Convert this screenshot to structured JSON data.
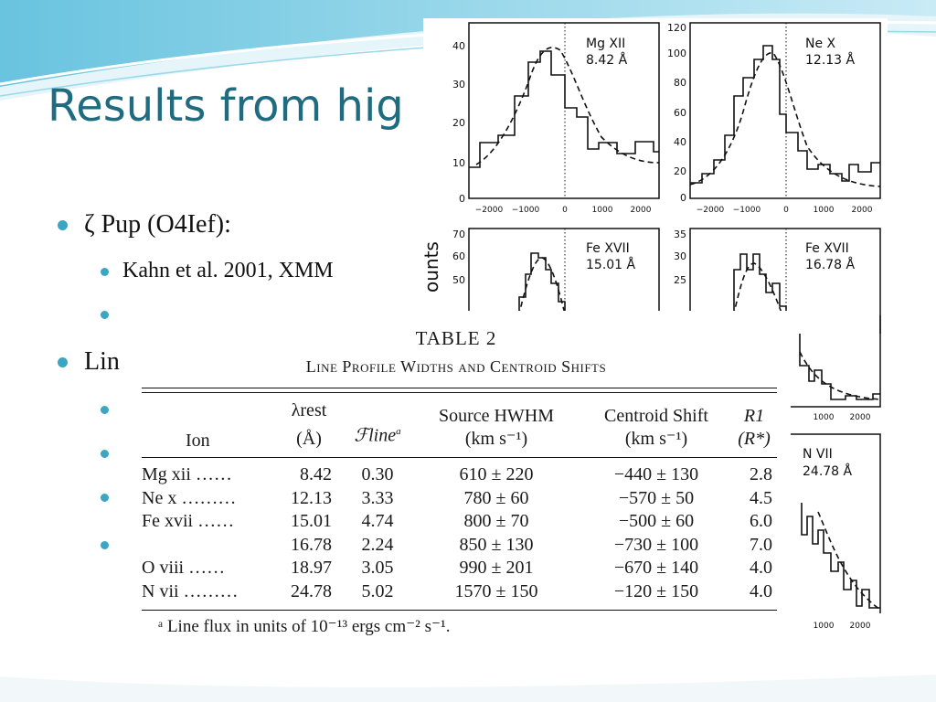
{
  "slide": {
    "title": "Results from hig",
    "bullets": [
      {
        "level": 1,
        "text": "ζ Pup (O4Ief):"
      },
      {
        "level": 2,
        "text": "Kahn et al. 2001, XMM"
      },
      {
        "level": 1,
        "text": "Lin"
      }
    ]
  },
  "colors": {
    "title": "#1f6b80",
    "bullet": "#3aa6c4",
    "accent_wave": "#5fc3e0"
  },
  "plots": {
    "y_axis_label": "ounts",
    "panels": [
      {
        "name": "Mg XII",
        "wavelength": "8.42 Å",
        "yticks": [
          "40",
          "30",
          "20",
          "10",
          "0"
        ],
        "xticks": [
          "−2000",
          "−1000",
          "0",
          "1000",
          "2000"
        ]
      },
      {
        "name": "Ne X",
        "wavelength": "12.13 Å",
        "yticks": [
          "120",
          "100",
          "80",
          "60",
          "40",
          "20",
          "0"
        ],
        "xticks": [
          "−2000",
          "−1000",
          "0",
          "1000",
          "2000"
        ]
      },
      {
        "name": "Fe XVII",
        "wavelength": "15.01 Å",
        "yticks": [
          "70",
          "60",
          "50"
        ]
      },
      {
        "name": "Fe XVII",
        "wavelength": "16.78 Å",
        "yticks": [
          "35",
          "30",
          "25"
        ]
      },
      {
        "name": "N VII",
        "wavelength": "24.78 Å",
        "xticks": [
          "1000",
          "2000"
        ]
      }
    ],
    "fe_xvii_16_xticks": [
      "1000",
      "2000"
    ]
  },
  "table": {
    "title": "TABLE 2",
    "subtitle": "Line Profile Widths and Centroid Shifts",
    "headers": {
      "ion": "Ion",
      "rest": "λrest",
      "rest_unit": "(Å)",
      "flux": "ℱline",
      "flux_note": "a",
      "hwhm": "Source HWHM",
      "hwhm_unit": "(km s⁻¹)",
      "shift": "Centroid Shift",
      "shift_unit": "(km s⁻¹)",
      "r1": "R1",
      "r1_unit": "(R*)"
    },
    "rows": [
      {
        "ion": "Mg xii ……",
        "rest": "8.42",
        "flux": "0.30",
        "hwhm": "610 ± 220",
        "shift": "−440 ± 130",
        "r1": "2.8"
      },
      {
        "ion": "Ne x ………",
        "rest": "12.13",
        "flux": "3.33",
        "hwhm": "780 ± 60",
        "shift": "−570 ± 50",
        "r1": "4.5"
      },
      {
        "ion": "Fe xvii ……",
        "rest": "15.01",
        "flux": "4.74",
        "hwhm": "800 ± 70",
        "shift": "−500 ± 60",
        "r1": "6.0"
      },
      {
        "ion": "",
        "rest": "16.78",
        "flux": "2.24",
        "hwhm": "850 ± 130",
        "shift": "−730 ± 100",
        "r1": "7.0"
      },
      {
        "ion": "O viii ……",
        "rest": "18.97",
        "flux": "3.05",
        "hwhm": "990 ± 201",
        "shift": "−670 ± 140",
        "r1": "4.0"
      },
      {
        "ion": "N vii ………",
        "rest": "24.78",
        "flux": "5.02",
        "hwhm": "1570 ± 150",
        "shift": "−120 ± 150",
        "r1": "4.0"
      }
    ],
    "footnote": "ᵃ Line flux in units of 10⁻¹³ ergs cm⁻² s⁻¹."
  }
}
